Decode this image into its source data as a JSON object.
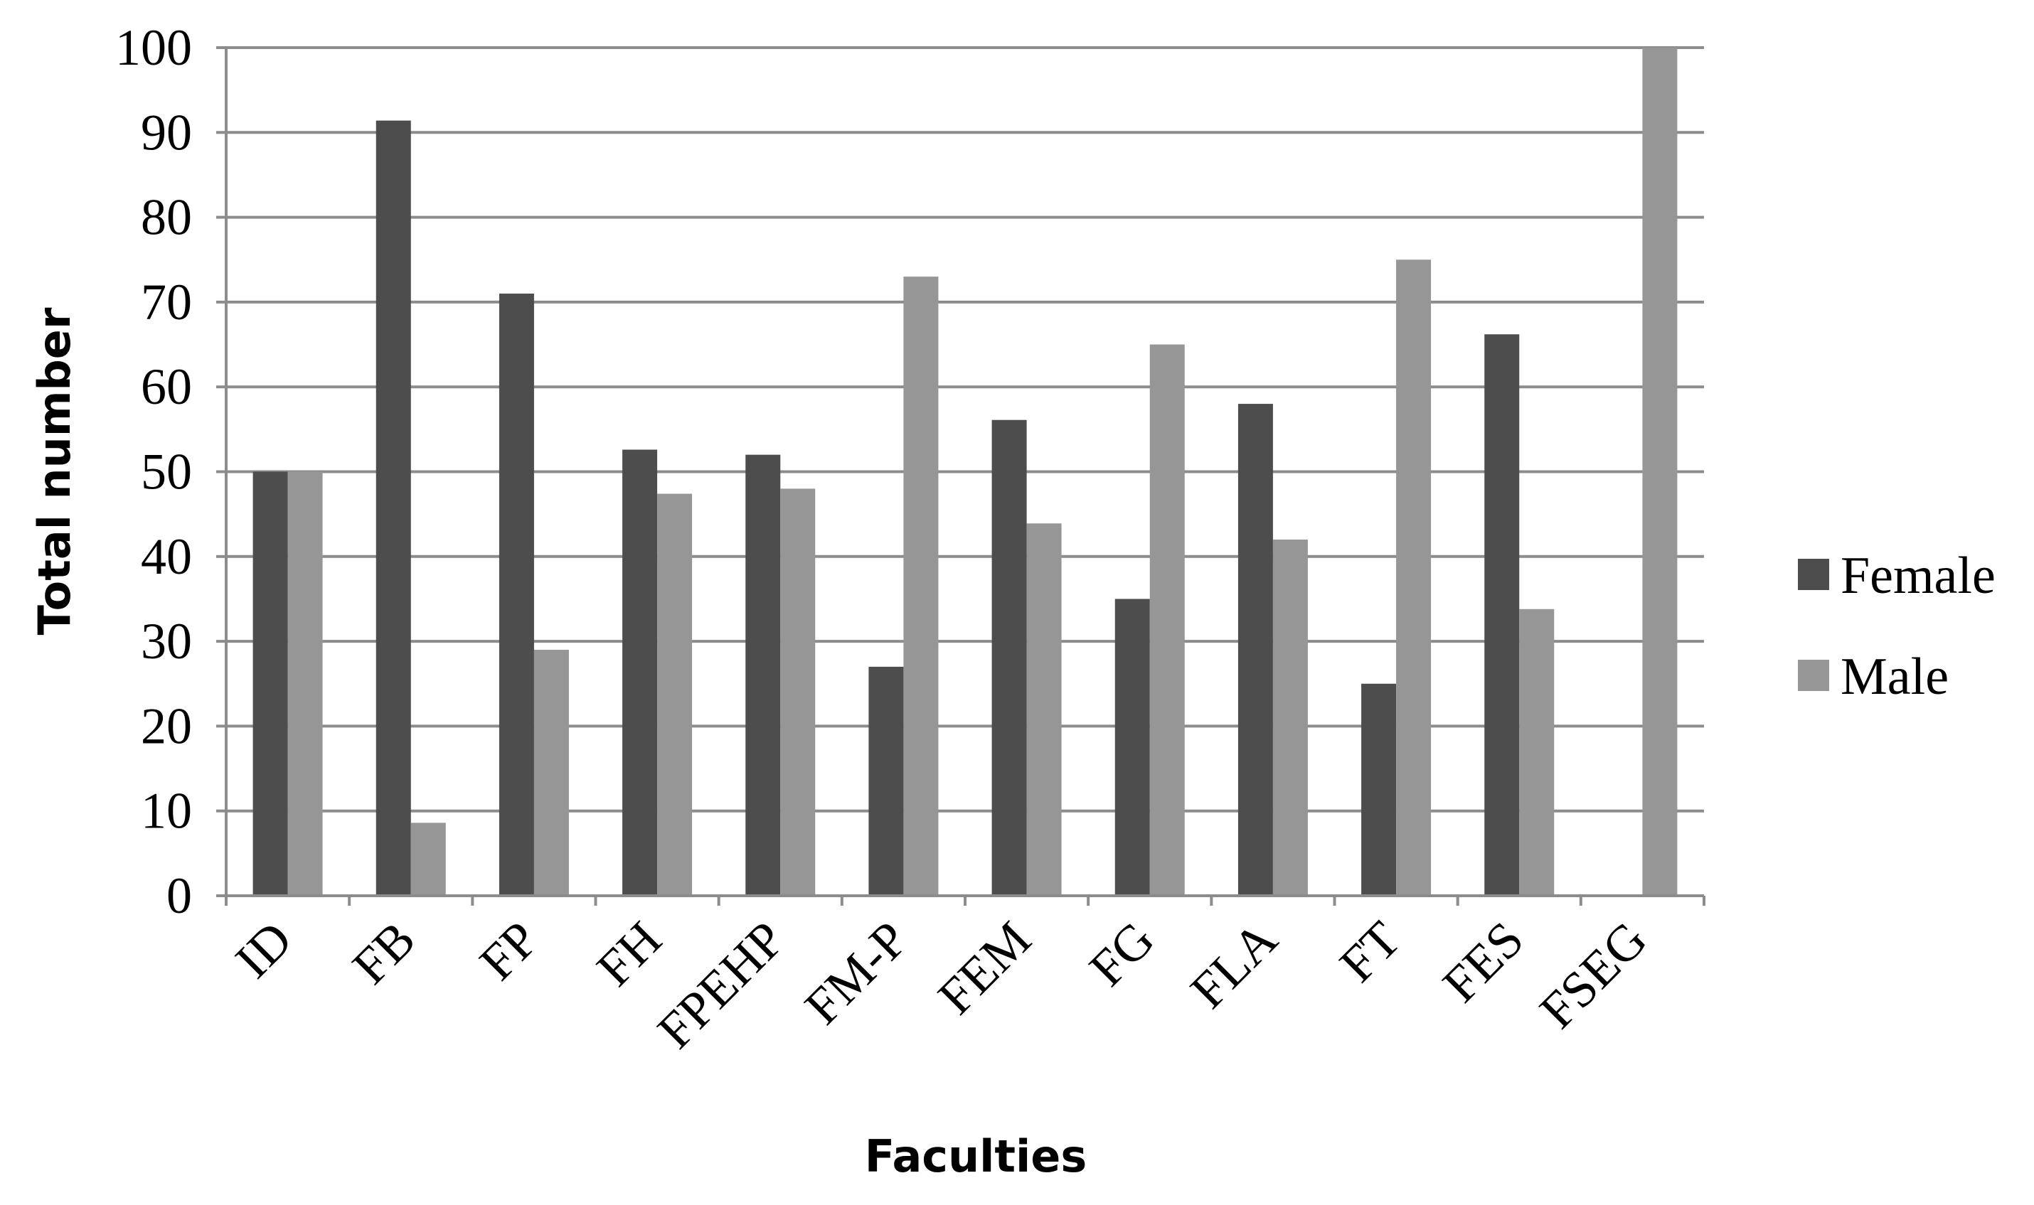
{
  "chart_data": {
    "type": "bar",
    "title": "",
    "xlabel": "Faculties",
    "ylabel": "Total number",
    "ylim": [
      0,
      100
    ],
    "yticks": [
      0,
      10,
      20,
      30,
      40,
      50,
      60,
      70,
      80,
      90,
      100
    ],
    "grid": true,
    "legend_position": "right",
    "categories": [
      "ID",
      "FB",
      "FP",
      "FH",
      "FPEHP",
      "FM-P",
      "FEM",
      "FG",
      "FLA",
      "FT",
      "FES",
      "FSEG"
    ],
    "series": [
      {
        "name": "Female",
        "color": "#4d4d4d",
        "values": [
          50,
          91.4,
          71,
          52.6,
          52,
          27,
          56.1,
          35,
          58,
          25,
          66.2,
          0
        ]
      },
      {
        "name": "Male",
        "color": "#969696",
        "values": [
          50,
          8.6,
          29,
          47.4,
          48,
          73,
          43.9,
          65,
          42,
          75,
          33.8,
          100
        ]
      }
    ]
  }
}
